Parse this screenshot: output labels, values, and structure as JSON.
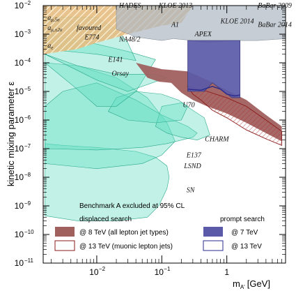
{
  "chart_data": {
    "type": "area",
    "xlabel": "m",
    "xlabel_sub": "A'",
    "xlabel_unit": "[GeV]",
    "ylabel": "kinetic mixing parameter ε",
    "x_scale": "log",
    "y_scale": "log",
    "xlim": [
      0.0015,
      8
    ],
    "ylim": [
      1e-11,
      0.01
    ],
    "x_ticks": [
      {
        "value": 0.01,
        "base": "10",
        "exp": "−2"
      },
      {
        "value": 0.1,
        "base": "10",
        "exp": "−1"
      },
      {
        "value": 1,
        "base": "1",
        "exp": ""
      }
    ],
    "y_ticks": [
      {
        "value": 0.01,
        "base": "10",
        "exp": "−2"
      },
      {
        "value": 0.001,
        "base": "10",
        "exp": "−3"
      },
      {
        "value": 0.0001,
        "base": "10",
        "exp": "−4"
      },
      {
        "value": 1e-05,
        "base": "10",
        "exp": "−5"
      },
      {
        "value": 1e-06,
        "base": "10",
        "exp": "−6"
      },
      {
        "value": 1e-07,
        "base": "10",
        "exp": "−7"
      },
      {
        "value": 1e-08,
        "base": "10",
        "exp": "−8"
      },
      {
        "value": 1e-09,
        "base": "10",
        "exp": "−9"
      },
      {
        "value": 1e-10,
        "base": "10",
        "exp": "−10"
      },
      {
        "value": 1e-11,
        "base": "10",
        "exp": "−11"
      }
    ],
    "colors": {
      "beam_dump_fill": "#5fdcc0",
      "beam_dump_edge": "#2aa88a",
      "sn_fill": "#3fe4c4",
      "g2_fill": "#e6bd82",
      "existing_grey": "#aeb8c2",
      "run1_8tev": "#a0605e",
      "run2_13tev": "#8b1a1a",
      "prompt_7tev": "#5a5aa8",
      "prompt_13tev": "#2a2a8c"
    },
    "regions": [
      {
        "name": "SN",
        "kind": "beam_dump",
        "boundary": [
          [
            0.0016,
            4.5e-10
          ],
          [
            0.005,
            3e-10
          ],
          [
            0.02,
            3e-10
          ],
          [
            0.06,
            4e-10
          ],
          [
            0.09,
            1e-09
          ],
          [
            0.12,
            4e-09
          ],
          [
            0.13,
            1e-08
          ],
          [
            0.12,
            2.5e-08
          ],
          [
            0.08,
            5e-08
          ],
          [
            0.04,
            8e-08
          ],
          [
            0.01,
            1.1e-07
          ],
          [
            0.003,
            1.3e-07
          ],
          [
            0.0016,
            1.5e-07
          ]
        ]
      },
      {
        "name": "LSND",
        "kind": "beam_dump",
        "boundary": [
          [
            0.0016,
            0.0001
          ],
          [
            0.0016,
            3e-08
          ],
          [
            0.01,
            2e-08
          ],
          [
            0.05,
            3e-08
          ],
          [
            0.1,
            6e-08
          ],
          [
            0.16,
            1.8e-07
          ],
          [
            0.12,
            8e-07
          ],
          [
            0.06,
            6e-06
          ],
          [
            0.02,
            3e-05
          ],
          [
            0.005,
            8e-05
          ]
        ]
      },
      {
        "name": "E137",
        "kind": "beam_dump",
        "boundary": [
          [
            0.0016,
            3e-06
          ],
          [
            0.0016,
            1e-07
          ],
          [
            0.01,
            9e-08
          ],
          [
            0.05,
            1.1e-07
          ],
          [
            0.12,
            1.5e-07
          ],
          [
            0.3,
            2.5e-07
          ],
          [
            0.35,
            3.5e-07
          ],
          [
            0.25,
            6e-07
          ],
          [
            0.1,
            1.5e-06
          ],
          [
            0.04,
            5e-06
          ],
          [
            0.01,
            2e-05
          ],
          [
            0.003,
            1e-05
          ]
        ]
      },
      {
        "name": "CHARM",
        "kind": "beam_dump",
        "boundary": [
          [
            0.2,
            4e-06
          ],
          [
            0.1,
            3e-06
          ],
          [
            0.08,
            6e-07
          ],
          [
            0.12,
            3.5e-07
          ],
          [
            0.2,
            2.5e-07
          ],
          [
            0.35,
            2e-07
          ],
          [
            0.55,
            3e-07
          ],
          [
            0.45,
            1.2e-06
          ]
        ]
      },
      {
        "name": "U70",
        "kind": "beam_dump",
        "boundary": [
          [
            0.04,
            1e-05
          ],
          [
            0.02,
            6e-06
          ],
          [
            0.015,
            2e-06
          ],
          [
            0.03,
            1e-06
          ],
          [
            0.08,
            8e-07
          ],
          [
            0.2,
            1e-06
          ],
          [
            0.25,
            3e-06
          ],
          [
            0.18,
            5e-06
          ],
          [
            0.1,
            8e-06
          ]
        ]
      },
      {
        "name": "E141",
        "kind": "beam_dump",
        "boundary": [
          [
            0.0016,
            0.001
          ],
          [
            0.0016,
            0.0001
          ],
          [
            0.005,
            1.2e-05
          ],
          [
            0.01,
            3e-06
          ],
          [
            0.02,
            3e-06
          ],
          [
            0.04,
            1e-05
          ],
          [
            0.08,
            0.00013
          ],
          [
            0.03,
            0.00025
          ],
          [
            0.01,
            0.00045
          ]
        ]
      },
      {
        "name": "Orsay",
        "kind": "beam_dump",
        "boundary": [
          [
            0.0016,
            0.0002
          ],
          [
            0.01,
            2.5e-05
          ],
          [
            0.03,
            1e-05
          ],
          [
            0.12,
            3e-05
          ],
          [
            0.08,
            4e-05
          ],
          [
            0.02,
            4e-05
          ],
          [
            0.005,
            8e-05
          ]
        ]
      },
      {
        "name": "E774",
        "kind": "beam_dump",
        "boundary": [
          [
            0.0016,
            0.004
          ],
          [
            0.0016,
            0.0003
          ],
          [
            0.01,
            0.0002
          ],
          [
            0.04,
            0.00012
          ],
          [
            0.03,
            0.0005
          ],
          [
            0.02,
            0.0015
          ],
          [
            0.01,
            0.004
          ]
        ]
      },
      {
        "name": "a_mu,5sigma / a_mu,+-2sigma favoured / a_e",
        "kind": "g2",
        "boundary": [
          [
            0.0015,
            0.01
          ],
          [
            0.0015,
            0.0002
          ],
          [
            0.005,
            0.0003
          ],
          [
            0.01,
            0.0005
          ],
          [
            0.03,
            0.001
          ],
          [
            0.1,
            0.002
          ],
          [
            0.2,
            0.0025
          ],
          [
            0.3,
            0.01
          ]
        ]
      },
      {
        "name": "HADES / KLOE 2013 / NA48/2 / A1 / APEX / KLOE 2014 / BaBar",
        "kind": "prompt_existing",
        "boundary": [
          [
            0.02,
            0.01
          ],
          [
            0.02,
            0.0015
          ],
          [
            0.04,
            0.0008
          ],
          [
            0.1,
            0.0006
          ],
          [
            0.15,
            0.0007
          ],
          [
            0.3,
            0.0006
          ],
          [
            0.5,
            0.0005
          ],
          [
            1,
            0.0006
          ],
          [
            3,
            0.0006
          ],
          [
            8,
            0.0007
          ],
          [
            8,
            0.01
          ]
        ]
      },
      {
        "name": "@ 8 TeV (all lepton jet types)",
        "kind": "displaced_8tev",
        "boundary": [
          [
            0.04,
            0.0001
          ],
          [
            0.1,
            6e-05
          ],
          [
            0.25,
            5e-05
          ],
          [
            0.5,
            2.5e-05
          ],
          [
            1,
            1.1e-05
          ],
          [
            2,
            5e-06
          ],
          [
            4,
            1.5e-06
          ],
          [
            7,
            6e-07
          ],
          [
            7,
            1.8e-07
          ],
          [
            4,
            3.5e-07
          ],
          [
            2,
            8e-07
          ],
          [
            1,
            1.7e-06
          ],
          [
            0.5,
            3e-06
          ],
          [
            0.3,
            5e-06
          ],
          [
            0.2,
            9e-06
          ],
          [
            0.14,
            2e-05
          ],
          [
            0.09,
            2.2e-05
          ],
          [
            0.06,
            3e-05
          ]
        ]
      },
      {
        "name": "@ 13 TeV (muonic lepton jets)",
        "kind": "displaced_13tev",
        "boundary": [
          [
            0.25,
            1.5e-05
          ],
          [
            0.5,
            1e-05
          ],
          [
            1,
            6e-06
          ],
          [
            2,
            3e-06
          ],
          [
            4,
            1e-06
          ],
          [
            7,
            4e-07
          ],
          [
            7,
            1.3e-07
          ],
          [
            4,
            2.2e-07
          ],
          [
            2,
            4.5e-07
          ],
          [
            1,
            1.2e-06
          ],
          [
            0.6,
            2.2e-06
          ],
          [
            0.4,
            5e-06
          ],
          [
            0.3,
            8e-06
          ]
        ]
      },
      {
        "name": "@ 7 TeV",
        "kind": "prompt_7tev",
        "boundary": [
          [
            0.25,
            0.0006
          ],
          [
            0.25,
            1e-05
          ],
          [
            0.45,
            1e-05
          ],
          [
            0.6,
            2e-05
          ],
          [
            1.2,
            6e-06
          ],
          [
            1.6,
            6e-06
          ],
          [
            1.6,
            0.0006
          ]
        ]
      },
      {
        "name": "@ 13 TeV",
        "kind": "prompt_13tev",
        "line": [
          [
            0.25,
            1.2e-05
          ],
          [
            0.4,
            1.1e-05
          ],
          [
            0.6,
            1.5e-05
          ],
          [
            0.8,
            1.2e-05
          ],
          [
            1,
            8e-06
          ],
          [
            1.3,
            7e-06
          ],
          [
            1.6,
            7.5e-06
          ]
        ]
      }
    ],
    "region_labels": [
      {
        "text": "HADES",
        "x": 0.022,
        "y": 0.0085
      },
      {
        "text": "KLOE 2013",
        "x": 0.09,
        "y": 0.0085
      },
      {
        "text": "BaBar 2009",
        "x": 3.0,
        "y": 0.0085
      },
      {
        "text": "A1",
        "x": 0.14,
        "y": 0.0018
      },
      {
        "text": "KLOE 2014",
        "x": 0.8,
        "y": 0.0024
      },
      {
        "text": "BaBar 2014",
        "x": 3.0,
        "y": 0.0018
      },
      {
        "text": "APEX",
        "x": 0.32,
        "y": 0.00085
      },
      {
        "text": "E774",
        "x": 0.0065,
        "y": 0.00065
      },
      {
        "text": "NA48/2",
        "x": 0.022,
        "y": 0.00055
      },
      {
        "text": "E141",
        "x": 0.015,
        "y": 0.00011
      },
      {
        "text": "Orsay",
        "x": 0.017,
        "y": 3.5e-05
      },
      {
        "text": "U70",
        "x": 0.21,
        "y": 2.8e-06
      },
      {
        "text": "CHARM",
        "x": 0.46,
        "y": 1.8e-07
      },
      {
        "text": "E137",
        "x": 0.24,
        "y": 5e-08
      },
      {
        "text": "LSND",
        "x": 0.22,
        "y": 2.1e-08
      },
      {
        "text": "SN",
        "x": 0.24,
        "y": 3e-09
      },
      {
        "text": "a",
        "sub": "μ,5σ",
        "x": 0.00175,
        "y": 0.0032
      },
      {
        "text": "a",
        "sub": "μ,±2σ",
        "x": 0.00175,
        "y": 0.0014
      },
      {
        "text": "favoured",
        "x": 0.0049,
        "y": 0.0014
      },
      {
        "text": "a",
        "sub": "e",
        "x": 0.00175,
        "y": 0.00033
      }
    ],
    "legend": {
      "title": "Benchmark A excluded at 95% CL",
      "displaced_header": "displaced search",
      "prompt_header": "prompt search",
      "items": [
        {
          "label": "@ 8 TeV (all lepton jet types)",
          "style": "run1"
        },
        {
          "label": "@ 13 TeV (muonic lepton jets)",
          "style": "run2"
        },
        {
          "label": "@ 7 TeV",
          "style": "prompt7"
        },
        {
          "label": "@ 13 TeV",
          "style": "prompt13"
        }
      ]
    }
  }
}
